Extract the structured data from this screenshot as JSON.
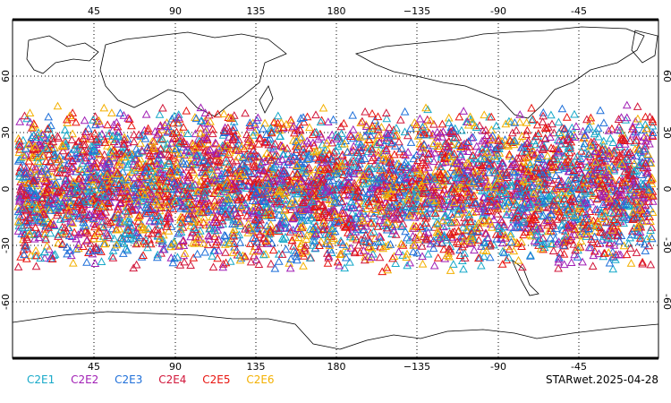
{
  "map": {
    "lon_ticks": [
      "45",
      "90",
      "135",
      "180",
      "−135",
      "-90",
      "-45"
    ],
    "lat_ticks": [
      "60",
      "30",
      "0",
      "-30",
      "-60"
    ],
    "lat_range": [
      -90,
      90
    ],
    "projection": "equirectangular, centered 180",
    "grid": "dotted"
  },
  "legend": {
    "items": [
      {
        "label": "C2E1",
        "color": "#17a9c9"
      },
      {
        "label": "C2E2",
        "color": "#a11fb5"
      },
      {
        "label": "C2E3",
        "color": "#1e6fd9"
      },
      {
        "label": "C2E4",
        "color": "#d1163a"
      },
      {
        "label": "C2E5",
        "color": "#e8140f"
      },
      {
        "label": "C2E6",
        "color": "#f3b000"
      }
    ]
  },
  "stamp": "STARwet.2025-04-28",
  "observations": {
    "marker": "triangle-icon",
    "lat_band": [
      -45,
      45
    ],
    "approx_count_per_series": 900
  }
}
